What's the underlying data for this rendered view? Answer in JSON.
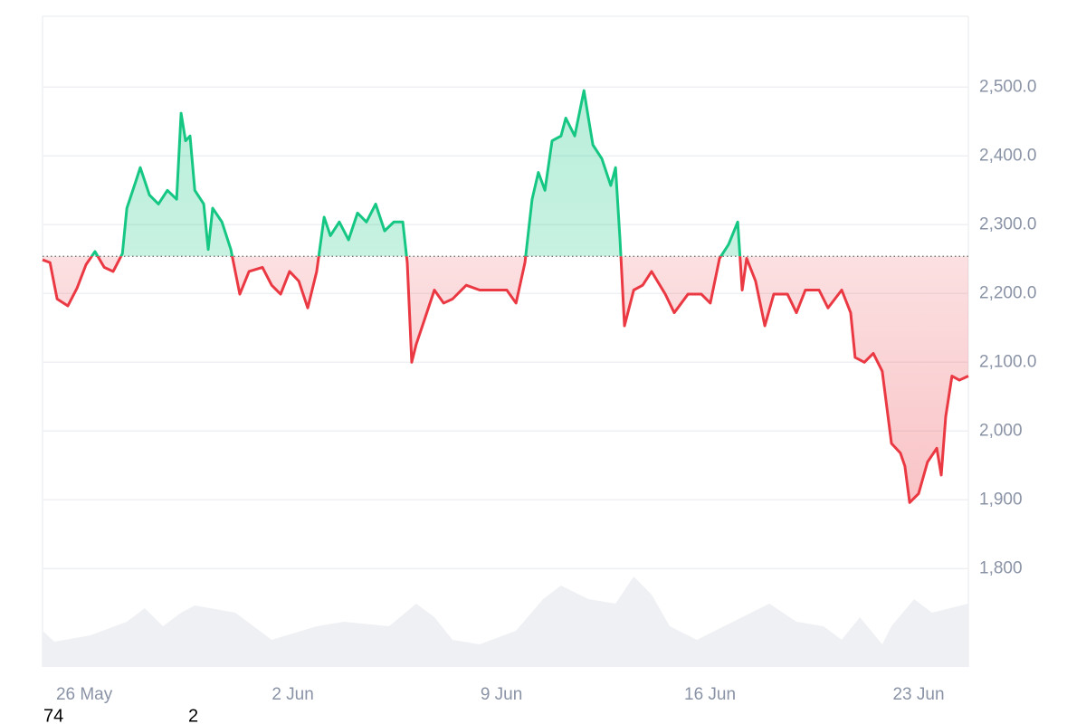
{
  "chart_data": {
    "type": "line",
    "x": [
      -1.4,
      -1.15,
      -0.91,
      -0.55,
      -0.24,
      0.06,
      0.36,
      0.67,
      0.97,
      1.28,
      1.43,
      1.73,
      1.88,
      2.19,
      2.49,
      2.79,
      3.1,
      3.25,
      3.4,
      3.55,
      3.71,
      4.01,
      4.16,
      4.31,
      4.62,
      4.92,
      5.22,
      5.53,
      5.98,
      6.29,
      6.59,
      6.89,
      7.2,
      7.5,
      7.8,
      8.05,
      8.26,
      8.56,
      8.87,
      9.17,
      9.47,
      9.78,
      10.08,
      10.39,
      10.69,
      10.84,
      10.99,
      11.14,
      11.45,
      11.75,
      12.06,
      12.36,
      12.82,
      13.27,
      13.73,
      14.18,
      14.49,
      14.79,
      15.03,
      15.24,
      15.46,
      15.7,
      16.0,
      16.16,
      16.46,
      16.77,
      16.92,
      17.07,
      17.37,
      17.67,
      17.83,
      17.98,
      18.13,
      18.44,
      18.74,
      19.04,
      19.5,
      19.8,
      20.26,
      20.71,
      21.01,
      21.32,
      21.62,
      21.93,
      22.08,
      22.23,
      22.53,
      22.84,
      23.14,
      23.6,
      23.9,
      24.2,
      24.66,
      24.96,
      25.42,
      25.72,
      25.87,
      26.18,
      26.48,
      26.78,
      27.09,
      27.39,
      27.54,
      27.7,
      28.0,
      28.3,
      28.61,
      28.76,
      28.91,
      29.12,
      29.37,
      29.67
    ],
    "values": [
      2249,
      2245,
      2192,
      2182,
      2208,
      2242,
      2261,
      2238,
      2232,
      2258,
      2324,
      2363,
      2383,
      2343,
      2330,
      2350,
      2337,
      2462,
      2422,
      2429,
      2350,
      2330,
      2264,
      2324,
      2304,
      2264,
      2199,
      2232,
      2238,
      2212,
      2199,
      2232,
      2218,
      2179,
      2232,
      2311,
      2284,
      2304,
      2278,
      2317,
      2304,
      2330,
      2291,
      2304,
      2304,
      2245,
      2100,
      2126,
      2166,
      2205,
      2186,
      2192,
      2212,
      2205,
      2205,
      2205,
      2186,
      2245,
      2337,
      2376,
      2350,
      2422,
      2429,
      2455,
      2429,
      2495,
      2455,
      2416,
      2396,
      2357,
      2383,
      2278,
      2153,
      2205,
      2212,
      2232,
      2199,
      2172,
      2199,
      2199,
      2186,
      2251,
      2271,
      2304,
      2205,
      2251,
      2218,
      2153,
      2199,
      2199,
      2172,
      2205,
      2205,
      2179,
      2205,
      2172,
      2107,
      2100,
      2113,
      2087,
      1982,
      1968,
      1949,
      1896,
      1909,
      1955,
      1975,
      1936,
      2021,
      2080,
      2074,
      2080
    ],
    "baseline": 2254,
    "color_up": "#16c784",
    "color_down": "#ea3943",
    "xlim": [
      -1.4,
      29.67
    ],
    "ylim": [
      1657,
      2603
    ],
    "xticks": [
      {
        "value": 0,
        "label": "26 May"
      },
      {
        "value": 7,
        "label": "2 Jun"
      },
      {
        "value": 14,
        "label": "9 Jun"
      },
      {
        "value": 21,
        "label": "16 Jun"
      },
      {
        "value": 28,
        "label": "23 Jun"
      }
    ],
    "yticks": [
      {
        "value": 1800,
        "label": "1,800"
      },
      {
        "value": 1900,
        "label": "1,900"
      },
      {
        "value": 2000,
        "label": "2,000"
      },
      {
        "value": 2100,
        "label": "2,100.0"
      },
      {
        "value": 2200,
        "label": "2,200.0"
      },
      {
        "value": 2300,
        "label": "2,300.0"
      },
      {
        "value": 2400,
        "label": "2,400.0"
      },
      {
        "value": 2500,
        "label": "2,500.0"
      }
    ],
    "grid": true,
    "volume": {
      "x": [
        -1.4,
        -1.0,
        0.21,
        1.43,
        2.03,
        2.64,
        3.25,
        3.71,
        5.07,
        5.68,
        6.29,
        7.8,
        8.72,
        10.23,
        11.14,
        11.75,
        12.36,
        13.27,
        14.49,
        15.4,
        16.0,
        16.92,
        17.83,
        18.44,
        19.04,
        19.65,
        20.56,
        21.47,
        22.38,
        22.99,
        23.9,
        24.81,
        25.42,
        26.03,
        26.78,
        27.09,
        27.85,
        28.45,
        29.06,
        29.67
      ],
      "values": [
        40,
        28,
        35,
        50,
        65,
        45,
        60,
        68,
        60,
        45,
        30,
        45,
        50,
        45,
        70,
        55,
        30,
        25,
        40,
        75,
        90,
        75,
        70,
        100,
        80,
        45,
        30,
        45,
        60,
        70,
        50,
        45,
        30,
        55,
        25,
        45,
        75,
        60,
        65,
        70
      ],
      "color": "#eef0f3"
    },
    "footer_labels": [
      "74",
      "2"
    ]
  }
}
